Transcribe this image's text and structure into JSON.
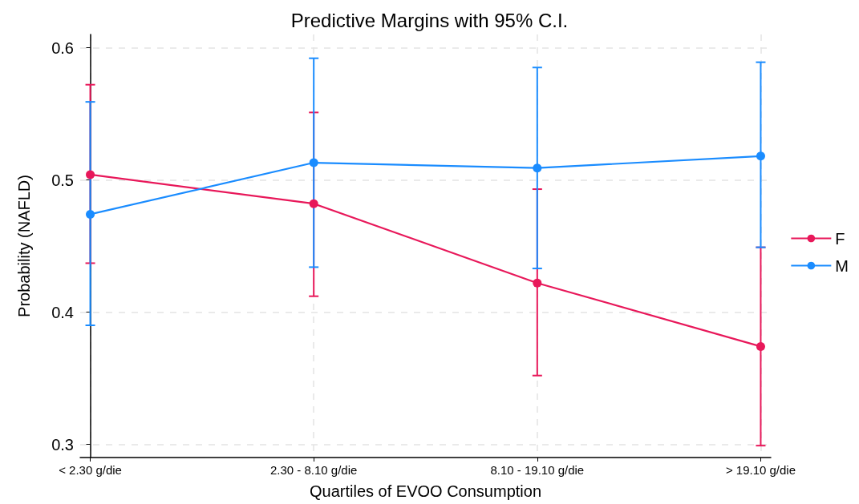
{
  "chart_data": {
    "type": "line",
    "title": "Predictive Margins with 95% C.I.",
    "xlabel": "Quartiles of EVOO Consumption",
    "ylabel": "Probability (NAFLD)",
    "categories": [
      "< 2.30 g/die",
      "2.30 - 8.10 g/die",
      "8.10 - 19.10 g/die",
      "> 19.10 g/die"
    ],
    "series": [
      {
        "name": "F",
        "color": "#e8185a",
        "values": [
          0.504,
          0.482,
          0.422,
          0.374
        ],
        "errors": [
          [
            0.437,
            0.572
          ],
          [
            0.412,
            0.551
          ],
          [
            0.352,
            0.493
          ],
          [
            0.299,
            0.449
          ]
        ]
      },
      {
        "name": "M",
        "color": "#1a8cff",
        "values": [
          0.474,
          0.513,
          0.509,
          0.518
        ],
        "errors": [
          [
            0.39,
            0.559
          ],
          [
            0.434,
            0.592
          ],
          [
            0.433,
            0.585
          ],
          [
            0.449,
            0.589
          ]
        ]
      }
    ],
    "ylim": [
      0.29,
      0.61
    ],
    "yticks": [
      0.3,
      0.4,
      0.5,
      0.6
    ],
    "grid": true,
    "legend": "right",
    "marker": "circle",
    "line_style": "solid"
  }
}
